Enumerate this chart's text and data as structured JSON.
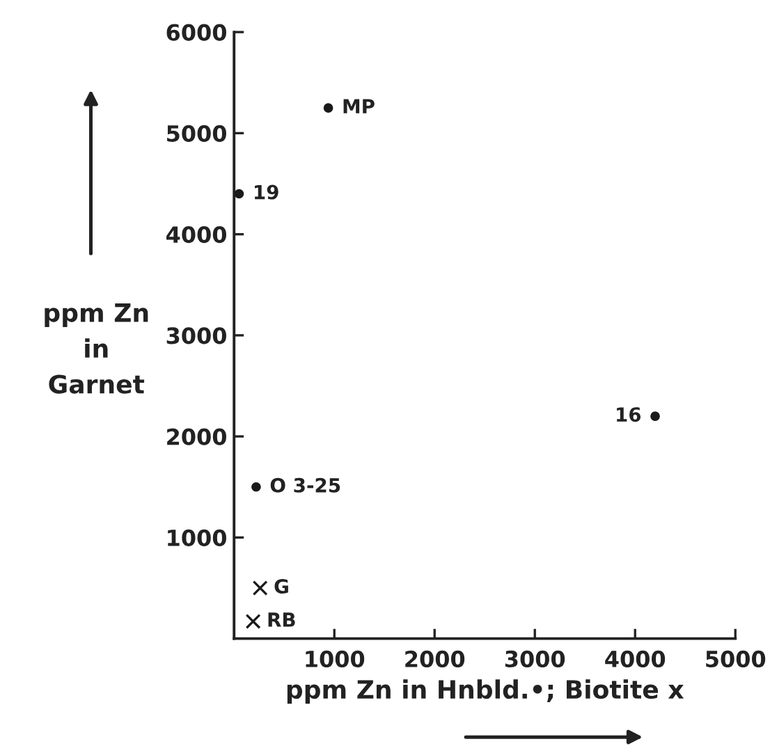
{
  "chart_data": {
    "type": "scatter",
    "xlabel": "ppm Zn in Hnbld.•; Biotite x",
    "ylabel": "ppm Zn\nin\nGarnet",
    "xlim": [
      0,
      5000
    ],
    "ylim": [
      0,
      6000
    ],
    "xticks": [
      1000,
      2000,
      3000,
      4000,
      5000
    ],
    "yticks": [
      1000,
      2000,
      3000,
      4000,
      5000,
      6000
    ],
    "grid": false,
    "legend": false,
    "series": [
      {
        "color": "#1a1a1a",
        "marker": "circle",
        "x": [
          940,
          50,
          4200,
          220
        ],
        "values": [
          5250,
          4400,
          2200,
          1500
        ]
      },
      {
        "color": "#1a1a1a",
        "marker": "cross",
        "x": [
          260,
          190
        ],
        "values": [
          500,
          170
        ]
      }
    ],
    "annotations": [
      {
        "text": "MP",
        "x": 940,
        "y": 5250
      },
      {
        "text": "19",
        "x": 50,
        "y": 4400
      },
      {
        "text": "16",
        "x": 4200,
        "y": 2200
      },
      {
        "text": "O 3-25",
        "x": 220,
        "y": 1500
      },
      {
        "text": "G",
        "x": 260,
        "y": 500
      },
      {
        "text": "RB",
        "x": 190,
        "y": 170
      }
    ]
  }
}
